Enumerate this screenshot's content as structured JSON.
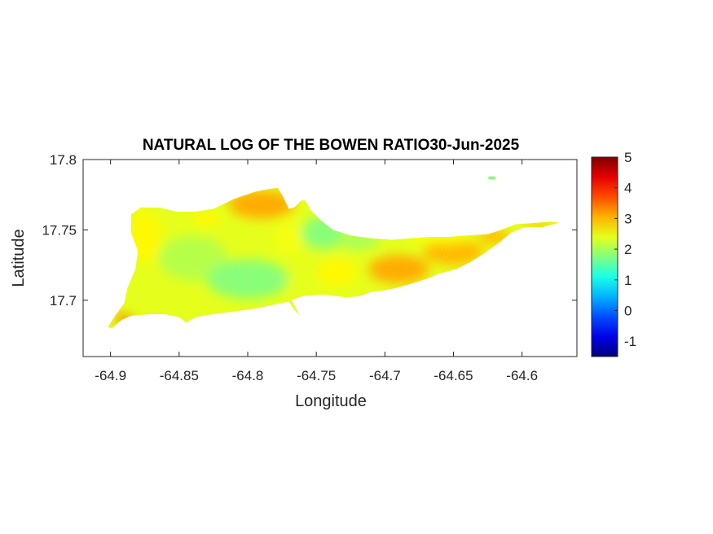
{
  "chart_data": {
    "type": "heatmap",
    "title": "NATURAL LOG OF THE BOWEN RATIO30-Jun-2025",
    "xlabel": "Longitude",
    "ylabel": "Latitude",
    "xlim": [
      -64.92,
      -64.56
    ],
    "ylim": [
      17.66,
      17.8
    ],
    "xticks": [
      -64.9,
      -64.85,
      -64.8,
      -64.75,
      -64.7,
      -64.65,
      -64.6
    ],
    "xtick_labels": [
      "-64.9",
      "-64.85",
      "-64.8",
      "-64.75",
      "-64.7",
      "-64.65",
      "-64.6"
    ],
    "yticks": [
      17.7,
      17.75,
      17.8
    ],
    "ytick_labels": [
      "17.7",
      "17.75",
      "17.8"
    ],
    "colorbar": {
      "range": [
        -1.5,
        5
      ],
      "ticks": [
        -1,
        0,
        1,
        2,
        3,
        4,
        5
      ],
      "tick_labels": [
        "-1",
        "0",
        "1",
        "2",
        "3",
        "4",
        "5"
      ],
      "colormap": "jet"
    },
    "island_outline": [
      [
        -64.899,
        17.68
      ],
      [
        -64.892,
        17.686
      ],
      [
        -64.885,
        17.689
      ],
      [
        -64.872,
        17.69
      ],
      [
        -64.86,
        17.69
      ],
      [
        -64.85,
        17.688
      ],
      [
        -64.845,
        17.684
      ],
      [
        -64.838,
        17.688
      ],
      [
        -64.826,
        17.69
      ],
      [
        -64.81,
        17.692
      ],
      [
        -64.795,
        17.694
      ],
      [
        -64.78,
        17.697
      ],
      [
        -64.77,
        17.699
      ],
      [
        -64.766,
        17.693
      ],
      [
        -64.762,
        17.689
      ],
      [
        -64.768,
        17.7
      ],
      [
        -64.76,
        17.703
      ],
      [
        -64.745,
        17.704
      ],
      [
        -64.728,
        17.702
      ],
      [
        -64.718,
        17.703
      ],
      [
        -64.71,
        17.706
      ],
      [
        -64.7,
        17.707
      ],
      [
        -64.69,
        17.709
      ],
      [
        -64.68,
        17.712
      ],
      [
        -64.67,
        17.715
      ],
      [
        -64.66,
        17.719
      ],
      [
        -64.648,
        17.722
      ],
      [
        -64.638,
        17.727
      ],
      [
        -64.628,
        17.733
      ],
      [
        -64.618,
        17.74
      ],
      [
        -64.608,
        17.748
      ],
      [
        -64.598,
        17.752
      ],
      [
        -64.585,
        17.752
      ],
      [
        -64.573,
        17.755
      ],
      [
        -64.567,
        17.754
      ],
      [
        -64.578,
        17.756
      ],
      [
        -64.59,
        17.755
      ],
      [
        -64.605,
        17.754
      ],
      [
        -64.615,
        17.75
      ],
      [
        -64.625,
        17.747
      ],
      [
        -64.64,
        17.746
      ],
      [
        -64.655,
        17.745
      ],
      [
        -64.668,
        17.745
      ],
      [
        -64.682,
        17.744
      ],
      [
        -64.695,
        17.743
      ],
      [
        -64.71,
        17.744
      ],
      [
        -64.725,
        17.746
      ],
      [
        -64.738,
        17.75
      ],
      [
        -64.747,
        17.757
      ],
      [
        -64.754,
        17.764
      ],
      [
        -64.758,
        17.771
      ],
      [
        -64.761,
        17.771
      ],
      [
        -64.766,
        17.766
      ],
      [
        -64.77,
        17.765
      ],
      [
        -64.775,
        17.775
      ],
      [
        -64.778,
        17.78
      ],
      [
        -64.785,
        17.779
      ],
      [
        -64.795,
        17.777
      ],
      [
        -64.81,
        17.772
      ],
      [
        -64.825,
        17.765
      ],
      [
        -64.838,
        17.763
      ],
      [
        -64.852,
        17.763
      ],
      [
        -64.865,
        17.766
      ],
      [
        -64.878,
        17.766
      ],
      [
        -64.885,
        17.761
      ],
      [
        -64.885,
        17.748
      ],
      [
        -64.88,
        17.735
      ],
      [
        -64.882,
        17.722
      ],
      [
        -64.888,
        17.708
      ],
      [
        -64.89,
        17.698
      ],
      [
        -64.896,
        17.69
      ],
      [
        -64.902,
        17.681
      ]
    ],
    "regions": [
      {
        "lon": -64.79,
        "lat": 17.768,
        "rx": 0.024,
        "ry": 0.01,
        "value": 3.1
      },
      {
        "lon": -64.83,
        "lat": 17.758,
        "rx": 0.01,
        "ry": 0.006,
        "value": 2.6
      },
      {
        "lon": -64.77,
        "lat": 17.745,
        "rx": 0.01,
        "ry": 0.012,
        "value": 2.5
      },
      {
        "lon": -64.745,
        "lat": 17.748,
        "rx": 0.016,
        "ry": 0.012,
        "value": 1.8
      },
      {
        "lon": -64.72,
        "lat": 17.742,
        "rx": 0.016,
        "ry": 0.006,
        "value": 2.0
      },
      {
        "lon": -64.875,
        "lat": 17.745,
        "rx": 0.012,
        "ry": 0.018,
        "value": 2.6
      },
      {
        "lon": -64.84,
        "lat": 17.73,
        "rx": 0.025,
        "ry": 0.016,
        "value": 2.1
      },
      {
        "lon": -64.8,
        "lat": 17.715,
        "rx": 0.03,
        "ry": 0.014,
        "value": 1.8
      },
      {
        "lon": -64.76,
        "lat": 17.712,
        "rx": 0.012,
        "ry": 0.008,
        "value": 2.4
      },
      {
        "lon": -64.735,
        "lat": 17.72,
        "rx": 0.015,
        "ry": 0.01,
        "value": 2.6
      },
      {
        "lon": -64.69,
        "lat": 17.722,
        "rx": 0.022,
        "ry": 0.01,
        "value": 3.1
      },
      {
        "lon": -64.65,
        "lat": 17.734,
        "rx": 0.022,
        "ry": 0.009,
        "value": 3.0
      },
      {
        "lon": -64.62,
        "lat": 17.745,
        "rx": 0.012,
        "ry": 0.005,
        "value": 3.0
      },
      {
        "lon": -64.66,
        "lat": 17.745,
        "rx": 0.025,
        "ry": 0.005,
        "value": 2.5
      },
      {
        "lon": -64.89,
        "lat": 17.686,
        "rx": 0.006,
        "ry": 0.004,
        "value": 3.4
      },
      {
        "lon": -64.588,
        "lat": 17.754,
        "rx": 0.012,
        "ry": 0.002,
        "value": 3.0
      }
    ],
    "islet": {
      "lon": -64.622,
      "lat": 17.787,
      "value": 1.8
    }
  }
}
